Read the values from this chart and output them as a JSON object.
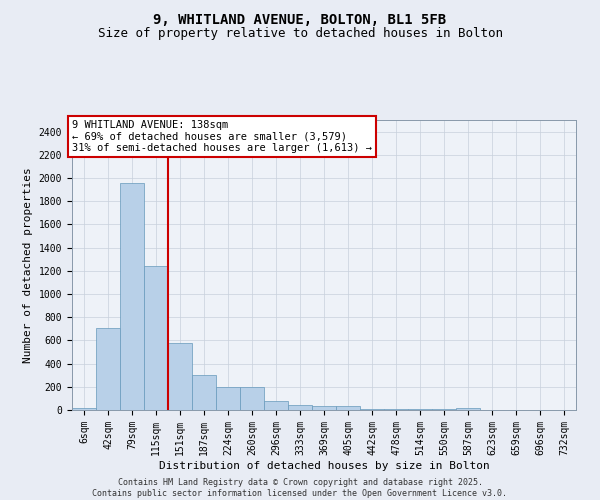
{
  "title1": "9, WHITLAND AVENUE, BOLTON, BL1 5FB",
  "title2": "Size of property relative to detached houses in Bolton",
  "xlabel": "Distribution of detached houses by size in Bolton",
  "ylabel": "Number of detached properties",
  "categories": [
    "6sqm",
    "42sqm",
    "79sqm",
    "115sqm",
    "151sqm",
    "187sqm",
    "224sqm",
    "260sqm",
    "296sqm",
    "333sqm",
    "369sqm",
    "405sqm",
    "442sqm",
    "478sqm",
    "514sqm",
    "550sqm",
    "587sqm",
    "623sqm",
    "659sqm",
    "696sqm",
    "732sqm"
  ],
  "values": [
    15,
    710,
    1960,
    1240,
    575,
    305,
    200,
    195,
    80,
    45,
    38,
    32,
    12,
    12,
    5,
    5,
    18,
    2,
    0,
    0,
    0
  ],
  "bar_color": "#b8d0e8",
  "bar_edgecolor": "#6699bb",
  "vline_color": "#cc0000",
  "annotation_text": "9 WHITLAND AVENUE: 138sqm\n← 69% of detached houses are smaller (3,579)\n31% of semi-detached houses are larger (1,613) →",
  "annotation_box_color": "#ffffff",
  "annotation_box_edgecolor": "#cc0000",
  "ylim": [
    0,
    2500
  ],
  "yticks": [
    0,
    200,
    400,
    600,
    800,
    1000,
    1200,
    1400,
    1600,
    1800,
    2000,
    2200,
    2400
  ],
  "bg_color": "#e8ecf4",
  "plot_bg_color": "#eef2f8",
  "footer": "Contains HM Land Registry data © Crown copyright and database right 2025.\nContains public sector information licensed under the Open Government Licence v3.0.",
  "title_fontsize": 10,
  "subtitle_fontsize": 9,
  "tick_fontsize": 7,
  "ylabel_fontsize": 8,
  "xlabel_fontsize": 8,
  "footer_fontsize": 6
}
